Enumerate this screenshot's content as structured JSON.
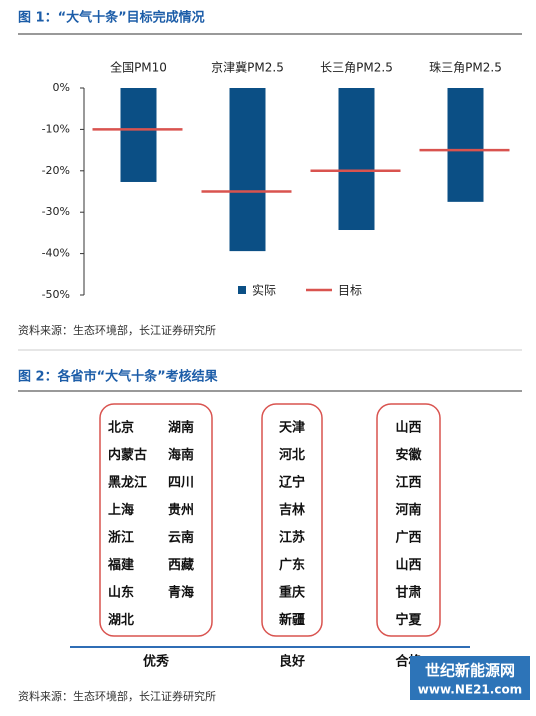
{
  "figure1": {
    "title": "图 1：“大气十条”目标完成情况",
    "source": "资料来源：生态环境部，长江证券研究所"
  },
  "chart_data": {
    "type": "bar",
    "categories": [
      "全国PM10",
      "京津冀PM2.5",
      "长三角PM2.5",
      "珠三角PM2.5"
    ],
    "series": [
      {
        "name": "实际",
        "color": "#0b4f85",
        "values": [
          -22.7,
          -39.4,
          -34.3,
          -27.5
        ]
      },
      {
        "name": "目标",
        "color": "#d9534f",
        "type": "target",
        "values": [
          -10,
          -25,
          -20,
          -15
        ]
      }
    ],
    "ylim": [
      -50,
      0
    ],
    "yticks": [
      {
        "value": 0,
        "label": "0%"
      },
      {
        "value": -10,
        "label": "-10%"
      },
      {
        "value": -20,
        "label": "-20%"
      },
      {
        "value": -30,
        "label": "-30%"
      },
      {
        "value": -40,
        "label": "-40%"
      },
      {
        "value": -50,
        "label": "-50%"
      }
    ],
    "grid": false,
    "legend": "lower right"
  },
  "figure2": {
    "title": "图 2：各省市“大气十条”考核结果",
    "source": "资料来源：生态环境部，长江证券研究所",
    "groups": [
      {
        "label": "优秀",
        "columns": [
          [
            "北京",
            "内蒙古",
            "黑龙江",
            "上海",
            "浙江",
            "福建",
            "山东",
            "湖北"
          ],
          [
            "湖南",
            "海南",
            "四川",
            "贵州",
            "云南",
            "西藏",
            "青海"
          ]
        ]
      },
      {
        "label": "良好",
        "columns": [
          [
            "天津",
            "河北",
            "辽宁",
            "吉林",
            "江苏",
            "广东",
            "重庆",
            "新疆"
          ]
        ]
      },
      {
        "label": "合格",
        "columns": [
          [
            "山西",
            "安徽",
            "江西",
            "河南",
            "广西",
            "山西",
            "甘肃",
            "宁夏"
          ]
        ]
      }
    ]
  },
  "watermark": {
    "name": "世纪新能源网",
    "url": "www.NE21.com"
  }
}
